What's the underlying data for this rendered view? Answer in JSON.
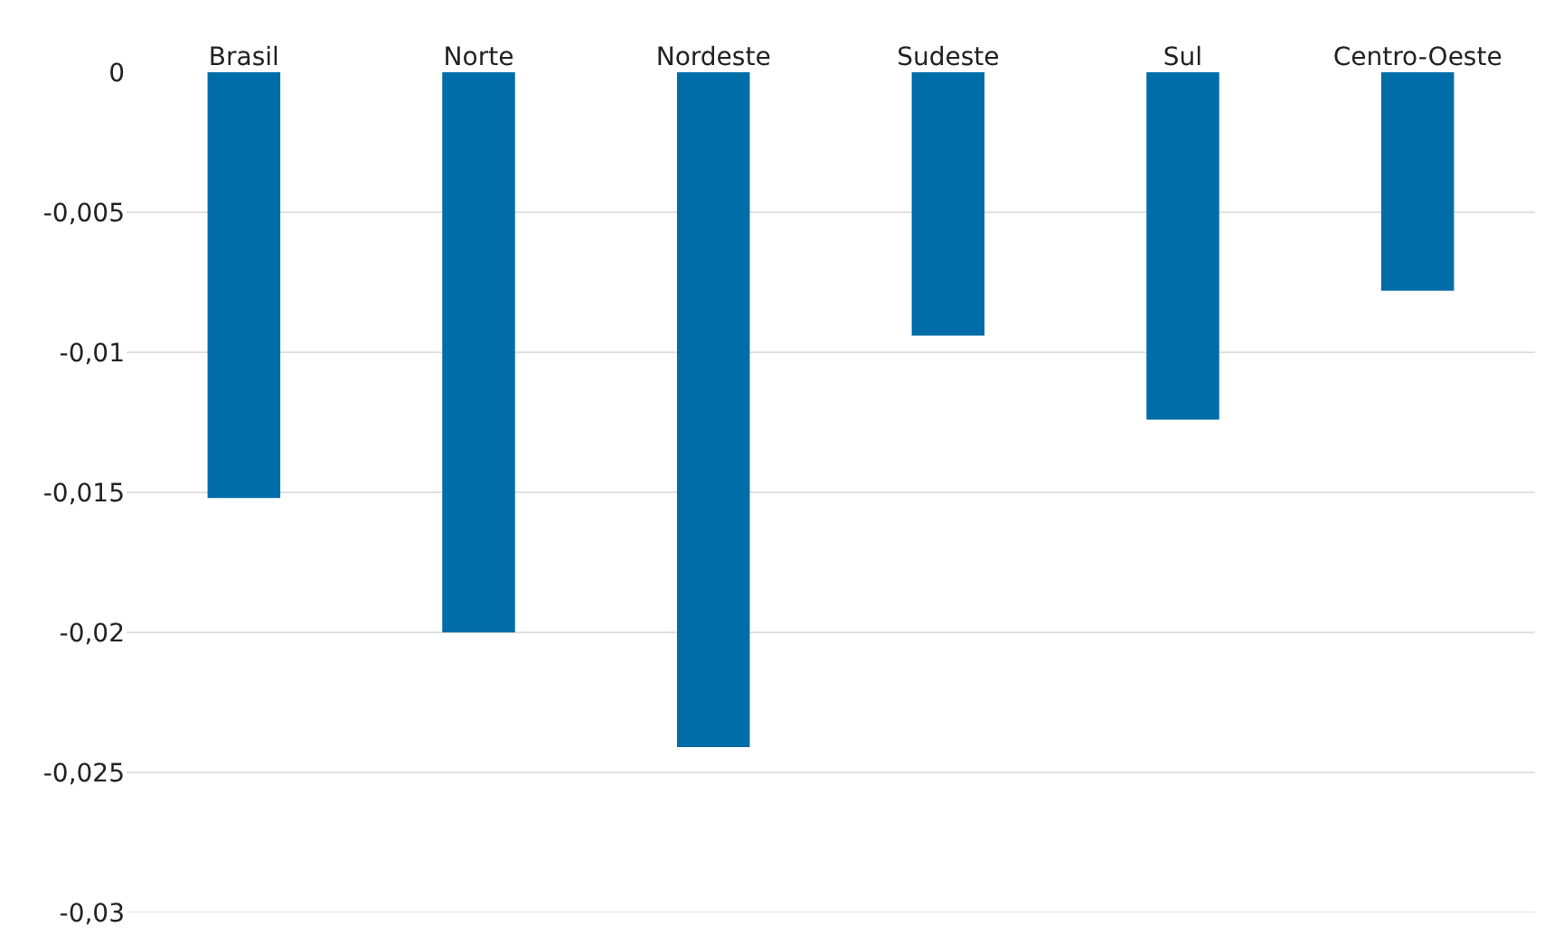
{
  "chart_data": {
    "type": "bar",
    "categories": [
      "Brasil",
      "Norte",
      "Nordeste",
      "Sudeste",
      "Sul",
      "Centro-Oeste"
    ],
    "values": [
      -0.0152,
      -0.02,
      -0.0241,
      -0.0094,
      -0.0124,
      -0.0078
    ],
    "color": "#006ca8",
    "ylim": [
      -0.03,
      0
    ],
    "yticks": [
      0,
      {
        "value": -0.005,
        "label": "-0,005"
      },
      {
        "value": -0.01,
        "label": "-0,01"
      },
      {
        "value": -0.015,
        "label": "-0,015"
      },
      {
        "value": -0.02,
        "label": "-0,02"
      },
      {
        "value": -0.025,
        "label": "-0,025"
      },
      {
        "value": -0.03,
        "label": "-0,03"
      }
    ],
    "grid": "y"
  }
}
